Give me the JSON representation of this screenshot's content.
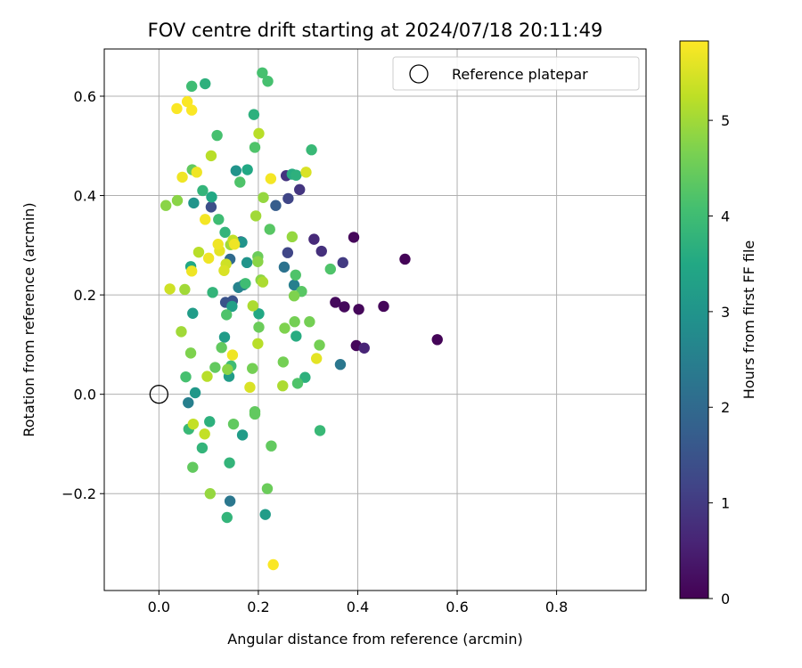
{
  "chart_data": {
    "type": "scatter",
    "title": "FOV centre drift starting at 2024/07/18 20:11:49",
    "xlabel": "Angular distance from reference (arcmin)",
    "ylabel": "Rotation from reference (arcmin)",
    "xlim": [
      -0.11,
      0.98
    ],
    "ylim": [
      -0.395,
      0.695
    ],
    "xticks": [
      0.0,
      0.2,
      0.4,
      0.6,
      0.8
    ],
    "xtick_labels": [
      "0.0",
      "0.2",
      "0.4",
      "0.6",
      "0.8"
    ],
    "yticks": [
      -0.2,
      0.0,
      0.2,
      0.4,
      0.6
    ],
    "ytick_labels": [
      "−0.2",
      "0.0",
      "0.2",
      "0.4",
      "0.6"
    ],
    "grid": true,
    "legend": {
      "position": "top-right",
      "label": "Reference platepar"
    },
    "reference_point": {
      "x": 0.0,
      "y": 0.0
    },
    "colorbar": {
      "label": "Hours from first FF file",
      "min": 0,
      "max": 5.83,
      "ticks": [
        0,
        1,
        2,
        3,
        4,
        5
      ],
      "tick_labels": [
        "0",
        "1",
        "2",
        "3",
        "4",
        "5"
      ],
      "colormap": "viridis"
    },
    "points": [
      [
        0.56,
        0.11,
        0.05
      ],
      [
        0.495,
        0.272,
        0.05
      ],
      [
        0.452,
        0.177,
        0.1
      ],
      [
        0.402,
        0.171,
        0.1
      ],
      [
        0.397,
        0.098,
        0.1
      ],
      [
        0.392,
        0.316,
        0.1
      ],
      [
        0.373,
        0.176,
        0.15
      ],
      [
        0.355,
        0.185,
        0.15
      ],
      [
        0.413,
        0.093,
        0.6
      ],
      [
        0.312,
        0.312,
        0.7
      ],
      [
        0.327,
        0.288,
        0.8
      ],
      [
        0.37,
        0.265,
        1.0
      ],
      [
        0.283,
        0.412,
        0.9
      ],
      [
        0.256,
        0.44,
        0.9
      ],
      [
        0.26,
        0.394,
        1.2
      ],
      [
        0.259,
        0.285,
        1.2
      ],
      [
        0.165,
        0.307,
        1.2
      ],
      [
        0.105,
        0.377,
        1.4
      ],
      [
        0.148,
        0.188,
        1.5
      ],
      [
        0.134,
        0.185,
        1.5
      ],
      [
        0.235,
        0.38,
        1.7
      ],
      [
        0.143,
        0.272,
        2.0
      ],
      [
        0.252,
        0.256,
        2.2
      ],
      [
        0.365,
        0.06,
        2.3
      ],
      [
        0.143,
        -0.215,
        2.3
      ],
      [
        0.059,
        -0.017,
        2.5
      ],
      [
        0.272,
        0.22,
        2.5
      ],
      [
        0.16,
        0.215,
        2.6
      ],
      [
        0.17,
        0.22,
        2.6
      ],
      [
        0.167,
        0.306,
        3.0
      ],
      [
        0.177,
        0.265,
        3.0
      ],
      [
        0.155,
        0.45,
        3.0
      ],
      [
        0.07,
        0.385,
        3.0
      ],
      [
        0.073,
        0.003,
        3.1
      ],
      [
        0.068,
        0.163,
        3.2
      ],
      [
        0.141,
        0.036,
        3.2
      ],
      [
        0.132,
        0.115,
        3.2
      ],
      [
        0.168,
        -0.082,
        3.2
      ],
      [
        0.214,
        -0.242,
        3.2
      ],
      [
        0.147,
        0.177,
        3.3
      ],
      [
        0.178,
        0.452,
        3.5
      ],
      [
        0.064,
        0.257,
        3.5
      ],
      [
        0.106,
        0.397,
        3.5
      ],
      [
        0.201,
        0.162,
        3.5
      ],
      [
        0.268,
        0.443,
        3.6
      ],
      [
        0.276,
        0.117,
        3.6
      ],
      [
        0.276,
        0.441,
        3.7
      ],
      [
        0.294,
        0.034,
        3.7
      ],
      [
        0.093,
        0.625,
        3.7
      ],
      [
        0.191,
        0.563,
        3.7
      ],
      [
        0.102,
        -0.055,
        3.7
      ],
      [
        0.137,
        -0.248,
        3.8
      ],
      [
        0.142,
        -0.138,
        3.8
      ],
      [
        0.087,
        -0.108,
        3.8
      ],
      [
        0.088,
        0.41,
        3.8
      ],
      [
        0.133,
        0.326,
        3.8
      ],
      [
        0.108,
        0.205,
        3.8
      ],
      [
        0.06,
        -0.07,
        3.9
      ],
      [
        0.324,
        -0.073,
        3.9
      ],
      [
        0.307,
        0.492,
        3.9
      ],
      [
        0.12,
        0.352,
        4.0
      ],
      [
        0.174,
        0.223,
        4.0
      ],
      [
        0.145,
        0.057,
        4.0
      ],
      [
        0.066,
        0.62,
        4.0
      ],
      [
        0.208,
        0.647,
        4.1
      ],
      [
        0.219,
        0.63,
        4.1
      ],
      [
        0.117,
        0.521,
        4.1
      ],
      [
        0.054,
        0.035,
        4.1
      ],
      [
        0.136,
        0.16,
        4.2
      ],
      [
        0.193,
        0.497,
        4.2
      ],
      [
        0.163,
        0.427,
        4.2
      ],
      [
        0.345,
        0.252,
        4.2
      ],
      [
        0.279,
        0.022,
        4.2
      ],
      [
        0.275,
        0.24,
        4.2
      ],
      [
        0.223,
        0.332,
        4.3
      ],
      [
        0.287,
        0.207,
        4.3
      ],
      [
        0.067,
        0.452,
        4.4
      ],
      [
        0.126,
        0.094,
        4.4
      ],
      [
        0.113,
        0.054,
        4.4
      ],
      [
        0.15,
        -0.06,
        4.4
      ],
      [
        0.193,
        -0.035,
        4.4
      ],
      [
        0.193,
        -0.04,
        4.4
      ],
      [
        0.068,
        -0.147,
        4.4
      ],
      [
        0.226,
        -0.104,
        4.4
      ],
      [
        0.218,
        -0.19,
        4.5
      ],
      [
        0.201,
        0.135,
        4.5
      ],
      [
        0.199,
        0.277,
        4.5
      ],
      [
        0.273,
        0.146,
        4.6
      ],
      [
        0.323,
        0.099,
        4.6
      ],
      [
        0.303,
        0.146,
        4.6
      ],
      [
        0.188,
        0.052,
        4.6
      ],
      [
        0.25,
        0.065,
        4.6
      ],
      [
        0.253,
        0.133,
        4.7
      ],
      [
        0.272,
        0.198,
        4.7
      ],
      [
        0.064,
        0.083,
        4.7
      ],
      [
        0.037,
        0.39,
        4.8
      ],
      [
        0.014,
        0.38,
        4.8
      ],
      [
        0.205,
        0.23,
        4.8
      ],
      [
        0.199,
        0.267,
        4.8
      ],
      [
        0.138,
        0.05,
        4.8
      ],
      [
        0.268,
        0.317,
        4.9
      ],
      [
        0.21,
        0.396,
        4.9
      ],
      [
        0.103,
        -0.2,
        4.9
      ],
      [
        0.045,
        0.126,
        5.0
      ],
      [
        0.052,
        0.211,
        5.0
      ],
      [
        0.195,
        0.359,
        5.0
      ],
      [
        0.144,
        0.301,
        5.0
      ],
      [
        0.249,
        0.017,
        5.1
      ],
      [
        0.189,
        0.178,
        5.1
      ],
      [
        0.209,
        0.226,
        5.1
      ],
      [
        0.199,
        0.102,
        5.2
      ],
      [
        0.105,
        0.48,
        5.2
      ],
      [
        0.201,
        0.525,
        5.2
      ],
      [
        0.08,
        0.286,
        5.2
      ],
      [
        0.097,
        0.036,
        5.2
      ],
      [
        0.149,
        0.31,
        5.3
      ],
      [
        0.069,
        -0.06,
        5.3
      ],
      [
        0.092,
        -0.08,
        5.3
      ],
      [
        0.022,
        0.212,
        5.4
      ],
      [
        0.135,
        0.262,
        5.4
      ],
      [
        0.296,
        0.447,
        5.5
      ],
      [
        0.131,
        0.249,
        5.5
      ],
      [
        0.183,
        0.014,
        5.5
      ],
      [
        0.122,
        0.289,
        5.6
      ],
      [
        0.317,
        0.072,
        5.6
      ],
      [
        0.119,
        0.302,
        5.7
      ],
      [
        0.152,
        0.302,
        5.7
      ],
      [
        0.1,
        0.274,
        5.7
      ],
      [
        0.076,
        0.447,
        5.7
      ],
      [
        0.047,
        0.437,
        5.7
      ],
      [
        0.148,
        0.079,
        5.7
      ],
      [
        0.066,
        0.248,
        5.7
      ],
      [
        0.093,
        0.352,
        5.75
      ],
      [
        0.225,
        0.434,
        5.75
      ],
      [
        0.057,
        0.589,
        5.8
      ],
      [
        0.066,
        0.572,
        5.8
      ],
      [
        0.036,
        0.575,
        5.8
      ],
      [
        0.23,
        -0.343,
        5.8
      ]
    ]
  }
}
